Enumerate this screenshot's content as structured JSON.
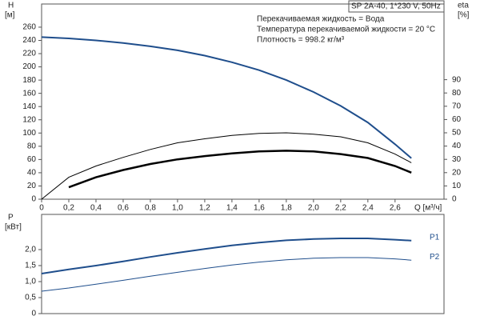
{
  "chart_data": [
    {
      "type": "line",
      "ylabel": "H",
      "yunit": "[м]",
      "y2label": "eta",
      "y2unit": "[%]",
      "xlabel": "Q [м³/ч]",
      "model": "SP 2A-40, 1*230 V, 50Hz",
      "notes": [
        "Перекачиваемая жидкость = Вода",
        "Температура перекачиваемой жидкости = 20 °C",
        "Плотность = 998.2 кг/м³"
      ],
      "xlim": [
        0,
        2.96
      ],
      "ylim": [
        0,
        295
      ],
      "y2lim": [
        0,
        147
      ],
      "xticks": [
        0,
        {
          "value": 0.2,
          "label": "0,2"
        },
        {
          "value": 0.4,
          "label": "0,4"
        },
        {
          "value": 0.6,
          "label": "0,6"
        },
        {
          "value": 0.8,
          "label": "0,8"
        },
        {
          "value": 1.0,
          "label": "1,0"
        },
        {
          "value": 1.2,
          "label": "1,2"
        },
        {
          "value": 1.4,
          "label": "1,4"
        },
        {
          "value": 1.6,
          "label": "1,6"
        },
        {
          "value": 1.8,
          "label": "1,8"
        },
        {
          "value": 2.0,
          "label": "2,0"
        },
        {
          "value": 2.2,
          "label": "2,2"
        },
        {
          "value": 2.4,
          "label": "2,4"
        },
        {
          "value": 2.6,
          "label": "2,6"
        }
      ],
      "yticks": [
        0,
        20,
        40,
        60,
        80,
        100,
        120,
        140,
        160,
        180,
        200,
        220,
        240,
        260
      ],
      "y2ticks": [
        0,
        10,
        20,
        30,
        40,
        50,
        60,
        70,
        80,
        90
      ],
      "x": [
        0,
        0.2,
        0.4,
        0.6,
        0.8,
        1.0,
        1.2,
        1.4,
        1.6,
        1.8,
        2.0,
        2.2,
        2.4,
        2.6,
        2.72
      ],
      "series": [
        {
          "color": "#1f4e8c",
          "width": 2,
          "values": [
            245,
            243,
            240,
            236,
            231,
            225,
            217,
            207,
            195,
            180,
            162,
            141,
            116,
            83,
            62
          ]
        },
        {
          "color": "#000000",
          "width": 1,
          "axis": "y2",
          "values": [
            0,
            16.5,
            25,
            31.5,
            37.5,
            42.5,
            45.5,
            48,
            49.5,
            50,
            49,
            47,
            42.5,
            34,
            27.5
          ]
        },
        {
          "color": "#000000",
          "width": 2.5,
          "axis": "y2",
          "values": [
            null,
            9,
            16.5,
            22,
            26.5,
            30,
            32.5,
            34.5,
            36,
            36.5,
            36,
            34,
            31,
            25,
            20
          ]
        }
      ]
    },
    {
      "type": "line",
      "ylabel": "P",
      "yunit": "[кВт]",
      "xlim": [
        0,
        2.96
      ],
      "ylim": [
        0,
        3.1
      ],
      "yticks": [
        0,
        {
          "value": 0.5,
          "label": "0,5"
        },
        {
          "value": 1.0,
          "label": "1,0"
        },
        {
          "value": 1.5,
          "label": "1,5"
        },
        {
          "value": 2.0,
          "label": "2,0"
        }
      ],
      "x": [
        0,
        0.2,
        0.4,
        0.6,
        0.8,
        1.0,
        1.2,
        1.4,
        1.6,
        1.8,
        2.0,
        2.2,
        2.4,
        2.6,
        2.72
      ],
      "series": [
        {
          "name": "P1",
          "color": "#1f4e8c",
          "width": 2,
          "values": [
            1.25,
            1.38,
            1.5,
            1.63,
            1.77,
            1.9,
            2.02,
            2.13,
            2.22,
            2.29,
            2.33,
            2.35,
            2.35,
            2.31,
            2.28
          ]
        },
        {
          "name": "P2",
          "color": "#1f4e8c",
          "width": 1,
          "values": [
            0.7,
            0.8,
            0.92,
            1.04,
            1.17,
            1.29,
            1.41,
            1.52,
            1.61,
            1.68,
            1.73,
            1.75,
            1.75,
            1.71,
            1.67
          ]
        }
      ]
    }
  ]
}
